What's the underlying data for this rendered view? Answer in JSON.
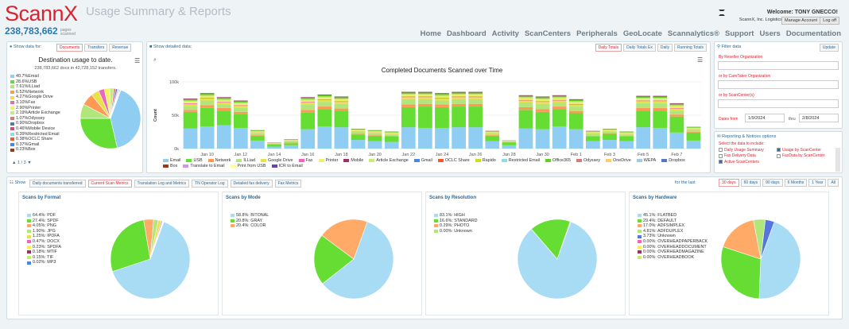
{
  "brand": {
    "logo": "ScannX",
    "count": "238,783,662",
    "count_suffix": "pages scanned"
  },
  "app_title": "Usage Summary & Reports",
  "user": {
    "welcome": "Welcome: TONY GNECCO!",
    "company": "ScannX, Inc. Logistics",
    "manage": "Manage Account",
    "logoff": "Log off"
  },
  "nav": [
    "Home",
    "Dashboard",
    "Activity",
    "ScanCenters",
    "Peripherals",
    "GeoLocate",
    "Scannalytics®",
    "Support",
    "Users",
    "Documentation"
  ],
  "left_panel": {
    "label": "Show data for:",
    "tabs": [
      "Documents",
      "Transfers",
      "Revenue"
    ],
    "active_tab": 0,
    "chart_title": "Destination usage to date.",
    "chart_subtitle": "238,783,662 docs in 42,728,152 transfers.",
    "pager": "1 / 3"
  },
  "colors": {
    "Email": "#8fcdf2",
    "USB": "#66dd33",
    "Network": "#ff9955",
    "ILLiad": "#b0e67a",
    "Google Drive": "#e8e14a",
    "Fax": "#ee66bb",
    "Printer": "#f2f25a",
    "Mobile": "#993366",
    "Article Exchange": "#c8ea78",
    "Gmail": "#4488ee",
    "OCLC Share": "#ff5522",
    "Rapido": "#ccdd22",
    "Restricted Email": "#88ddee",
    "Office365": "#66cc22",
    "Odyssey": "#dd7777",
    "OneDrive": "#ffcc66",
    "WEPA": "#99ccee",
    "Dropbox": "#5577bb",
    "Box": "#aa3311",
    "Translate to Email": "#cc99dd",
    "Print from USB": "#ffff99",
    "ICR to Email": "#6644aa",
    "Mobile Device": "#dd4488",
    "Other": "#bbbbbb"
  },
  "destination_chart": {
    "type": "pie",
    "slices": [
      {
        "name": "Email",
        "pct": "40.7%",
        "value": 40.7
      },
      {
        "name": "USB",
        "pct": "28.6%",
        "value": 28.6
      },
      {
        "name": "ILLiad",
        "pct": "7.61%",
        "value": 7.61
      },
      {
        "name": "Network",
        "pct": "6.52%",
        "value": 6.52
      },
      {
        "name": "Google Drive",
        "pct": "4.27%",
        "value": 4.27
      },
      {
        "name": "Fax",
        "pct": "3.10%",
        "value": 3.1
      },
      {
        "name": "Printer",
        "pct": "2.90%",
        "value": 2.9
      },
      {
        "name": "Article Exchange",
        "pct": "2.19%",
        "value": 2.19
      },
      {
        "name": "Odyssey",
        "pct": "1.07%",
        "value": 1.07
      },
      {
        "name": "Dropbox",
        "pct": "0.90%",
        "value": 0.9
      },
      {
        "name": "Mobile Device",
        "pct": "0.46%",
        "value": 0.46
      },
      {
        "name": "Restricted Email",
        "pct": "0.39%",
        "value": 0.39
      },
      {
        "name": "OCLC Share",
        "pct": "0.38%",
        "value": 0.38
      },
      {
        "name": "Gmail",
        "pct": "0.37%",
        "value": 0.37
      },
      {
        "name": "Box",
        "pct": "0.23%",
        "value": 0.23
      }
    ]
  },
  "middle_panel": {
    "label": "Show detailed data:",
    "tabs": [
      "Daily Totals",
      "Daily Totals Ex",
      "Daily",
      "Running Totals"
    ],
    "active_tab": 0
  },
  "chart_data": {
    "type": "bar",
    "stacked": true,
    "title": "Completed Documents Scanned over Time",
    "ylabel": "Count",
    "yticks": [
      "0k",
      "50k",
      "100k"
    ],
    "ylim": [
      0,
      100
    ],
    "x": [
      "Jan 9",
      "Jan 10",
      "Jan 11",
      "Jan 12",
      "Jan 13",
      "Jan 14",
      "Jan 15",
      "Jan 16",
      "Jan 17",
      "Jan 18",
      "Jan 19",
      "Jan 20",
      "Jan 21",
      "Jan 22",
      "Jan 23",
      "Jan 24",
      "Jan 25",
      "Jan 26",
      "Jan 27",
      "Jan 28",
      "Jan 29",
      "Jan 30",
      "Jan 31",
      "Feb 1",
      "Feb 2",
      "Feb 3",
      "Feb 4",
      "Feb 5",
      "Feb 6",
      "Feb 7",
      "Feb 8"
    ],
    "xtick_labels": [
      "Jan 10",
      "Jan 12",
      "Jan 14",
      "Jan 16",
      "Jan 18",
      "Jan 20",
      "Jan 22",
      "Jan 24",
      "Jan 26",
      "Jan 28",
      "Jan 30",
      "Feb 1",
      "Feb 3",
      "Feb 5",
      "Feb 7"
    ],
    "series": [
      {
        "name": "Email",
        "values": [
          30,
          33,
          35,
          31,
          12,
          3,
          5,
          29,
          33,
          32,
          13,
          11,
          10,
          32,
          31,
          31,
          32,
          32,
          11,
          5,
          30,
          29,
          33,
          29,
          11,
          13,
          11,
          32,
          31,
          24,
          12
        ]
      },
      {
        "name": "USB",
        "values": [
          25,
          28,
          22,
          21,
          7,
          3,
          3,
          25,
          26,
          25,
          8,
          8,
          8,
          30,
          32,
          31,
          31,
          31,
          8,
          4,
          28,
          26,
          26,
          24,
          7,
          9,
          7,
          25,
          26,
          24,
          12
        ]
      },
      {
        "name": "Network",
        "values": [
          3,
          4,
          4,
          3,
          1,
          0.5,
          1,
          4,
          4,
          3,
          1,
          1,
          1,
          4,
          4,
          4,
          4,
          4,
          1,
          0.5,
          4,
          4,
          4,
          3,
          1,
          1,
          1,
          4,
          4,
          3,
          1
        ]
      },
      {
        "name": "ILLiad",
        "values": [
          6,
          7,
          5,
          6,
          3,
          1,
          2,
          8,
          7,
          7,
          3,
          3,
          2,
          8,
          7,
          6,
          7,
          7,
          2,
          1,
          7,
          8,
          6,
          7,
          3,
          2,
          2,
          7,
          7,
          6,
          3
        ]
      },
      {
        "name": "Google Drive",
        "values": [
          3,
          3,
          3,
          3,
          1,
          0.5,
          1,
          3,
          3,
          3,
          1,
          1,
          1,
          3,
          3,
          3,
          3,
          3,
          1,
          0.5,
          3,
          3,
          3,
          3,
          1,
          1,
          1,
          3,
          3,
          3,
          1
        ]
      },
      {
        "name": "Fax",
        "values": [
          1,
          1,
          1,
          1,
          0.3,
          0.2,
          0.3,
          1,
          1,
          1,
          0.3,
          0.3,
          0.3,
          1,
          1,
          1,
          1,
          1,
          0.3,
          0.2,
          1,
          1,
          1,
          1,
          0.3,
          0.3,
          0.3,
          1,
          1,
          1,
          0.3
        ]
      },
      {
        "name": "Printer",
        "values": [
          2,
          2,
          2,
          2,
          1,
          0.3,
          0.5,
          2,
          2,
          2,
          1,
          1,
          1,
          2,
          2,
          2,
          2,
          2,
          1,
          0.3,
          2,
          2,
          2,
          2,
          1,
          1,
          1,
          2,
          2,
          2,
          1
        ]
      },
      {
        "name": "Article Exchange",
        "values": [
          2,
          2,
          2,
          2,
          1,
          0.3,
          0.5,
          2,
          2,
          2,
          1,
          1,
          1,
          2,
          2,
          2,
          2,
          2,
          1,
          0.3,
          2,
          2,
          2,
          2,
          1,
          1,
          1,
          2,
          2,
          2,
          1
        ]
      },
      {
        "name": "Office365",
        "values": [
          2,
          2,
          2,
          2,
          1,
          0.3,
          0.5,
          2,
          2,
          2,
          1,
          1,
          1,
          2,
          2,
          2,
          2,
          2,
          1,
          0.3,
          2,
          2,
          2,
          2,
          1,
          1,
          1,
          2,
          2,
          2,
          1
        ]
      },
      {
        "name": "Mobile",
        "values": [
          1,
          1,
          1,
          1,
          0.3,
          0.2,
          0.3,
          1,
          1,
          1,
          0.3,
          0.3,
          0.3,
          1,
          1,
          1,
          1,
          1,
          0.3,
          0.2,
          1,
          1,
          1,
          1,
          0.3,
          0.3,
          0.3,
          1,
          1,
          1,
          0.3
        ]
      }
    ]
  },
  "bar_legend": [
    "Email",
    "USB",
    "Network",
    "ILLiad",
    "Google Drive",
    "Fax",
    "Printer",
    "Mobile",
    "Article Exchange",
    "Gmail",
    "OCLC Share",
    "Rapido",
    "Restricted Email",
    "Office365",
    "Odyssey",
    "OneDrive",
    "WEPA",
    "Dropbox",
    "Box",
    "Translate to Email",
    "Print from USB",
    "ICR to Email"
  ],
  "filter": {
    "title": "Filter data",
    "update": "Update",
    "reseller_label": "By Reseller Organization",
    "caretaker_label": "or by CareTaker Organization",
    "scancenter_label": "or by ScanCenter(s)",
    "dates_label": "Dates from",
    "date_from": "1/9/2024",
    "thru_label": "thru",
    "date_to": "2/8/2024"
  },
  "reporting": {
    "title": "Reporting & Notices options",
    "subtitle": "Select the data to include:",
    "options": [
      {
        "label": "Daily Usage Summary",
        "checked": false
      },
      {
        "label": "Usage by ScanCenter",
        "checked": true
      },
      {
        "label": "Fax Delivery Data",
        "checked": false
      },
      {
        "label": "FaxData by ScanCenter",
        "checked": false
      },
      {
        "label": "Active ScanCenters",
        "checked": true
      }
    ]
  },
  "bottom": {
    "show_label": "Show",
    "tabs": [
      "Daily documents transferred",
      "Current Scan Metrics",
      "Translation Log and Metrics",
      "TN Operator Log",
      "Detailed fax delivery",
      "Fax Metrics"
    ],
    "active_tab": 1,
    "last_label": "for the last",
    "ranges": [
      "30 days",
      "60 days",
      "90 days",
      "6 Months",
      "1 Year",
      "All"
    ],
    "active_range": 0
  },
  "pies": [
    {
      "title": "Scans by Format",
      "items": [
        {
          "label": "64.4%: PDF",
          "value": 64.4,
          "color": "#a8dcf5"
        },
        {
          "label": "27.4%: SPDF",
          "value": 27.4,
          "color": "#66dd33"
        },
        {
          "label": "4.05%: PNG",
          "value": 4.05,
          "color": "#ffaa66"
        },
        {
          "label": "1.90%: JPG",
          "value": 1.9,
          "color": "#b0e67a"
        },
        {
          "label": "1.25%: IPDFA",
          "value": 1.25,
          "color": "#e8e14a"
        },
        {
          "label": "0.47%: DOCX",
          "value": 0.47,
          "color": "#ee66bb"
        },
        {
          "label": "0.23%: SPDFA",
          "value": 0.23,
          "color": "#f2f25a"
        },
        {
          "label": "0.18%: MTIF",
          "value": 0.18,
          "color": "#993366"
        },
        {
          "label": "0.15%: TIF",
          "value": 0.15,
          "color": "#c8ea78"
        },
        {
          "label": "0.02%: MP3",
          "value": 0.02,
          "color": "#4488ee"
        }
      ]
    },
    {
      "title": "Scans by Mode",
      "items": [
        {
          "label": "58.8%: BITONAL",
          "value": 58.8,
          "color": "#a8dcf5"
        },
        {
          "label": "20.8%: GRAY",
          "value": 20.8,
          "color": "#66dd33"
        },
        {
          "label": "20.4%: COLOR",
          "value": 20.4,
          "color": "#ffaa66"
        }
      ]
    },
    {
      "title": "Scans by Resolution",
      "items": [
        {
          "label": "83.1%: HIGH",
          "value": 83.1,
          "color": "#a8dcf5"
        },
        {
          "label": "16.6%: STANDARD",
          "value": 16.6,
          "color": "#66dd33"
        },
        {
          "label": "0.29%: PHOTO",
          "value": 0.29,
          "color": "#ffaa66"
        },
        {
          "label": "0.00%: Unknown",
          "value": 0,
          "color": "#b0e67a"
        }
      ]
    },
    {
      "title": "Scans by Hardware",
      "items": [
        {
          "label": "45.1%: FLATBED",
          "value": 45.1,
          "color": "#a8dcf5"
        },
        {
          "label": "29.4%: DEFAULT",
          "value": 29.4,
          "color": "#66dd33"
        },
        {
          "label": "17.0%: ADFSIMPLEX",
          "value": 17.0,
          "color": "#ffaa66"
        },
        {
          "label": "4.81%: ADFDUPLEX",
          "value": 4.81,
          "color": "#b0e67a"
        },
        {
          "label": "3.73%: Unknown",
          "value": 3.73,
          "color": "#5577dd"
        },
        {
          "label": "0.00%: OVERHEADPAPERBACK",
          "value": 0,
          "color": "#ee66bb"
        },
        {
          "label": "0.00%: OVERHEADDOCUMENT",
          "value": 0,
          "color": "#f2f25a"
        },
        {
          "label": "0.00%: OVERHEADMAGAZINE",
          "value": 0,
          "color": "#993366"
        },
        {
          "label": "0.00%: OVERHEADBOOK",
          "value": 0,
          "color": "#c8ea78"
        }
      ]
    }
  ]
}
